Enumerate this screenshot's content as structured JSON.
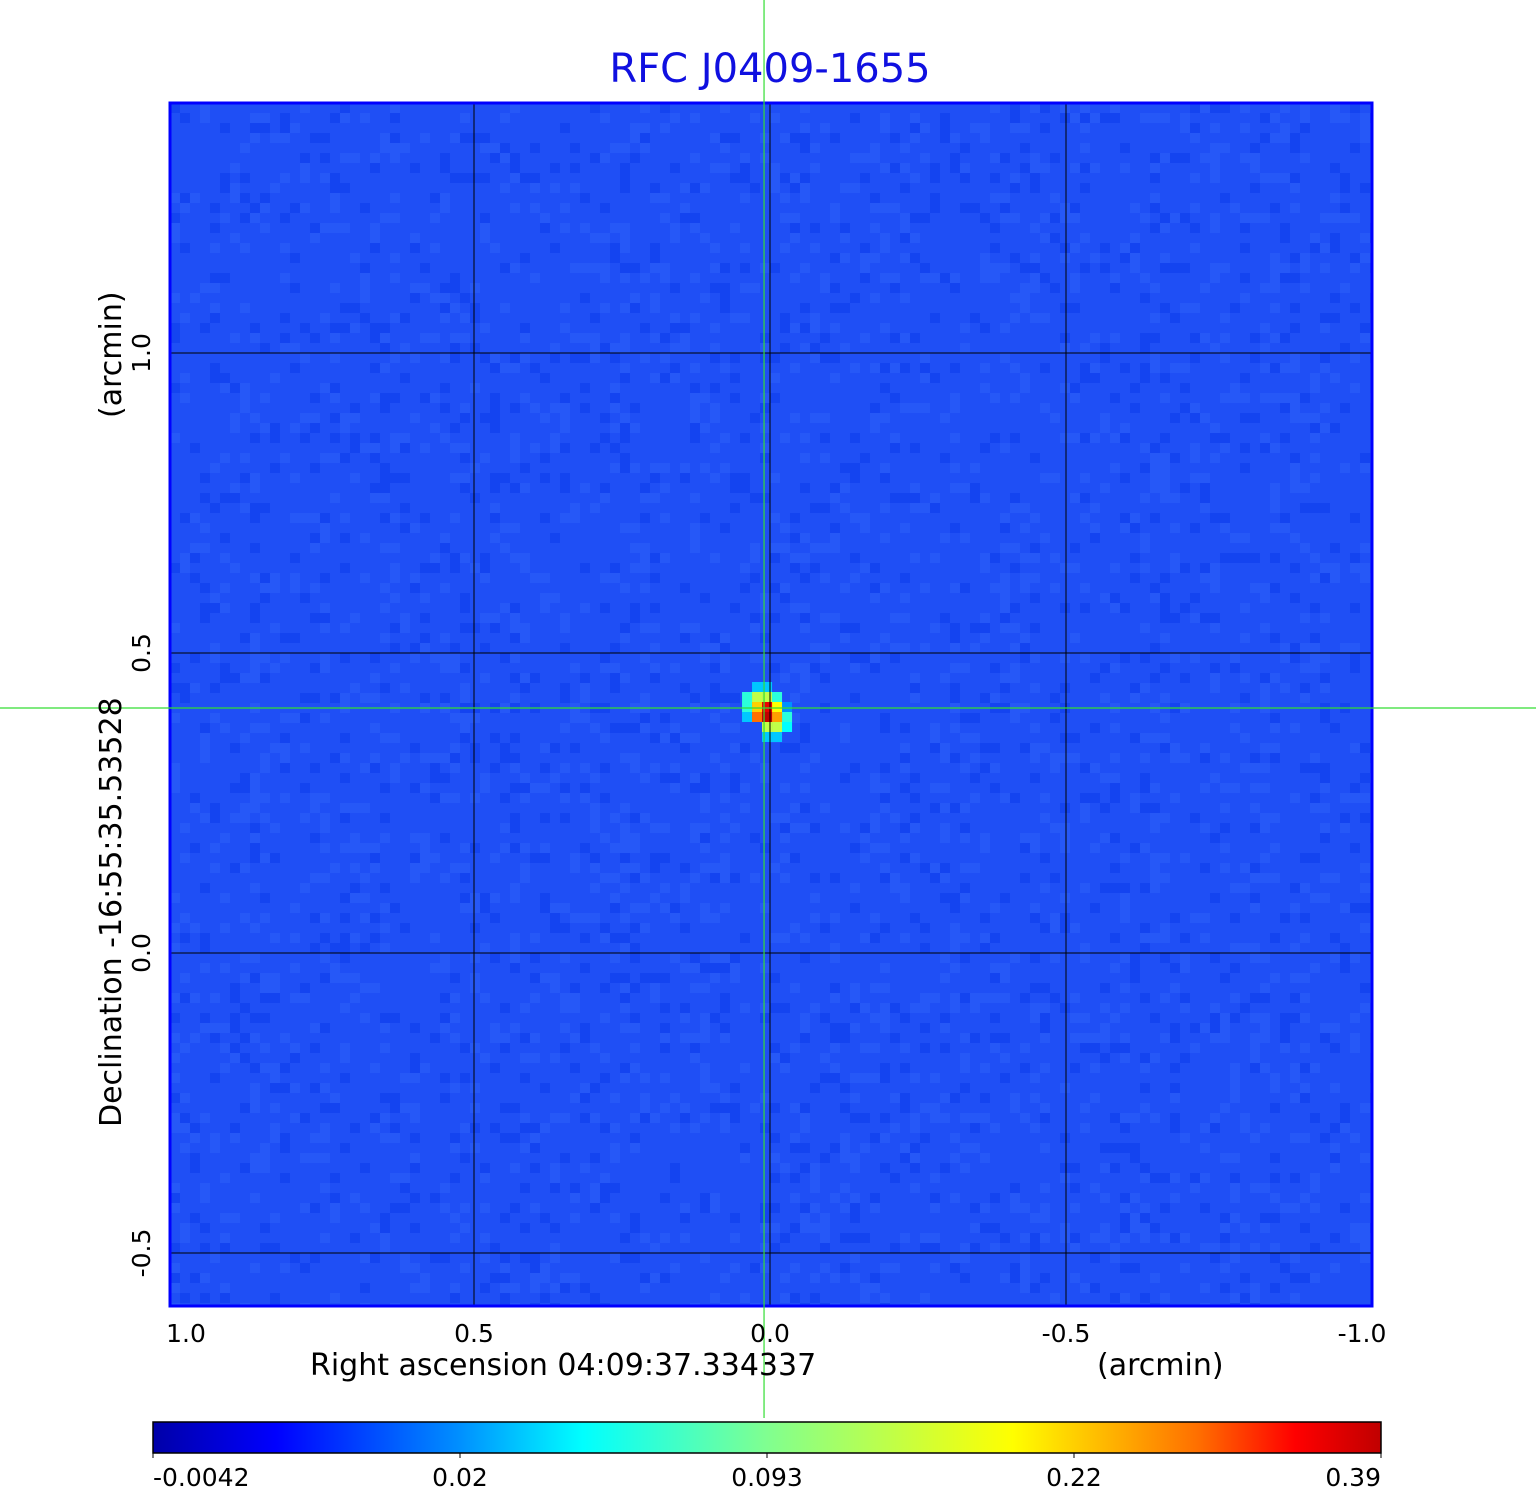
{
  "chart_data": {
    "type": "heatmap",
    "title": "RFC J0409-1655",
    "xlabel": "Right ascension  04:09:37.334337",
    "xunit": "(arcmin)",
    "ylabel": "Declination  -16:55:35.53528",
    "yunit": "(arcmin)",
    "xlim": [
      1.0,
      -1.0
    ],
    "ylim": [
      -0.59,
      1.42
    ],
    "xticks": [
      "1.0",
      "0.5",
      "0.0",
      "-0.5",
      "-1.0"
    ],
    "xtick_values": [
      1.0,
      0.5,
      0.0,
      -0.5,
      -1.0
    ],
    "yticks": [
      "-0.5",
      "0.0",
      "0.5",
      "1.0"
    ],
    "ytick_values": [
      -0.5,
      0.0,
      0.5,
      1.0
    ],
    "grid": true,
    "grid_color": "#000000",
    "crosshair": {
      "x": 0.005,
      "y": 0.41,
      "color": "#33dd33"
    },
    "colormap": "jet",
    "background_color": "#1f4ff5",
    "colorbar": {
      "placement": "bottom",
      "ticks": [
        "-0.0042",
        "0.02",
        "0.093",
        "0.22",
        "0.39"
      ],
      "min": -0.0042,
      "max": 0.39
    },
    "source": {
      "x": 0.005,
      "y": 0.41,
      "peak": 0.39,
      "pixels": [
        {
          "dx": 0,
          "dy": 0,
          "v": 1.0
        },
        {
          "dx": -1,
          "dy": 0,
          "v": 0.85
        },
        {
          "dx": 1,
          "dy": 0,
          "v": 0.8
        },
        {
          "dx": 0,
          "dy": 1,
          "v": 0.95
        },
        {
          "dx": -1,
          "dy": 1,
          "v": 0.75
        },
        {
          "dx": 1,
          "dy": 1,
          "v": 0.7
        },
        {
          "dx": -1,
          "dy": 2,
          "v": 0.6
        },
        {
          "dx": 0,
          "dy": 2,
          "v": 0.6
        },
        {
          "dx": 1,
          "dy": -1,
          "v": 0.6
        },
        {
          "dx": 0,
          "dy": -1,
          "v": 0.6
        },
        {
          "dx": -2,
          "dy": 1,
          "v": 0.4
        },
        {
          "dx": -2,
          "dy": 2,
          "v": 0.4
        },
        {
          "dx": 2,
          "dy": 0,
          "v": 0.4
        },
        {
          "dx": 2,
          "dy": -1,
          "v": 0.35
        },
        {
          "dx": 1,
          "dy": 2,
          "v": 0.4
        },
        {
          "dx": 0,
          "dy": 3,
          "v": 0.3
        },
        {
          "dx": -1,
          "dy": 3,
          "v": 0.3
        },
        {
          "dx": 1,
          "dy": -2,
          "v": 0.3
        },
        {
          "dx": 0,
          "dy": -2,
          "v": 0.3
        },
        {
          "dx": -2,
          "dy": 0,
          "v": 0.3
        },
        {
          "dx": 2,
          "dy": 1,
          "v": 0.25
        }
      ]
    }
  }
}
